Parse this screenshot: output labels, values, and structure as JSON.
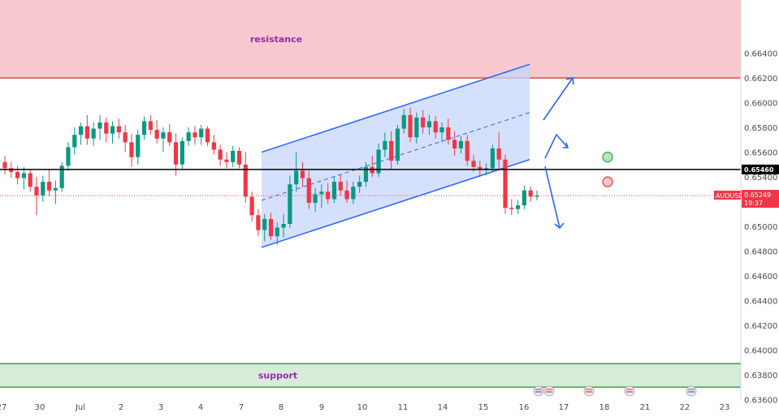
{
  "chart_data": {
    "type": "candlestick",
    "symbol": "AUDUSD",
    "last_price": "0.65249",
    "countdown": "19:37",
    "key_level": "0.65460",
    "y_axis": {
      "ylim": [
        0.6359,
        0.6683
      ],
      "ticks": [
        "0.66400",
        "0.66200",
        "0.66000",
        "0.65800",
        "0.65600",
        "0.65400",
        "0.65200",
        "0.65000",
        "0.64800",
        "0.64600",
        "0.64400",
        "0.64200",
        "0.64000",
        "0.63800",
        "0.63600"
      ]
    },
    "x_axis": {
      "ticks": [
        "27",
        "30",
        "Jul",
        "2",
        "3",
        "4",
        "7",
        "8",
        "9",
        "10",
        "11",
        "14",
        "15",
        "16",
        "17",
        "18",
        "21",
        "22",
        "23"
      ]
    },
    "zones": [
      {
        "label": "resistance",
        "from": 0.662,
        "to": 0.6683,
        "color": "#f7c9cf",
        "line": "#e53935"
      },
      {
        "label": "support",
        "from": 0.637,
        "to": 0.6389,
        "color": "#d6ecd9",
        "line": "#2e9e44"
      }
    ],
    "channel": {
      "color": "#2962ff",
      "fill": "#c7d5fb",
      "lower": [
        [
          "7 Jul late",
          0.6483
        ],
        [
          "15 Jul late",
          0.6554
        ]
      ],
      "upper": [
        [
          "7 Jul late",
          0.656
        ],
        [
          "16 Jul",
          0.6631
        ]
      ],
      "mid": [
        [
          "7 Jul late",
          0.6521
        ],
        [
          "16 Jul",
          0.6592
        ]
      ]
    },
    "scenarios": {
      "up": "bullish continuation arrow",
      "down": "bearish continuation arrow",
      "green_circle": 0.6556,
      "red_circle": 0.6536
    },
    "candles": [
      [
        0.6552,
        0.6557,
        0.6542,
        0.6547
      ],
      [
        0.6547,
        0.6552,
        0.6539,
        0.6544
      ],
      [
        0.6544,
        0.6549,
        0.6534,
        0.6539
      ],
      [
        0.6539,
        0.6548,
        0.653,
        0.6543
      ],
      [
        0.6543,
        0.6546,
        0.6528,
        0.6532
      ],
      [
        0.6532,
        0.654,
        0.6509,
        0.6525
      ],
      [
        0.6525,
        0.6541,
        0.652,
        0.6536
      ],
      [
        0.6536,
        0.6546,
        0.6524,
        0.6529
      ],
      [
        0.6529,
        0.6537,
        0.6518,
        0.6531
      ],
      [
        0.6531,
        0.6552,
        0.6528,
        0.6549
      ],
      [
        0.6549,
        0.6568,
        0.6545,
        0.6564
      ],
      [
        0.6564,
        0.658,
        0.6558,
        0.6574
      ],
      [
        0.6574,
        0.6584,
        0.6566,
        0.6581
      ],
      [
        0.6581,
        0.659,
        0.6566,
        0.6571
      ],
      [
        0.6571,
        0.6584,
        0.6565,
        0.6579
      ],
      [
        0.6579,
        0.659,
        0.657,
        0.6584
      ],
      [
        0.6584,
        0.6588,
        0.6568,
        0.6575
      ],
      [
        0.6575,
        0.6585,
        0.6567,
        0.6581
      ],
      [
        0.6581,
        0.6587,
        0.6571,
        0.6576
      ],
      [
        0.6576,
        0.6582,
        0.656,
        0.6568
      ],
      [
        0.6568,
        0.6575,
        0.6548,
        0.6556
      ],
      [
        0.6556,
        0.6578,
        0.655,
        0.6574
      ],
      [
        0.6574,
        0.6589,
        0.657,
        0.6585
      ],
      [
        0.6585,
        0.659,
        0.6574,
        0.6578
      ],
      [
        0.6578,
        0.6586,
        0.6567,
        0.6571
      ],
      [
        0.6571,
        0.658,
        0.656,
        0.6576
      ],
      [
        0.6576,
        0.6583,
        0.6565,
        0.6568
      ],
      [
        0.6568,
        0.6575,
        0.6541,
        0.655
      ],
      [
        0.655,
        0.6572,
        0.6546,
        0.6569
      ],
      [
        0.6569,
        0.658,
        0.6565,
        0.6576
      ],
      [
        0.6576,
        0.6581,
        0.6566,
        0.6572
      ],
      [
        0.6572,
        0.6582,
        0.6566,
        0.6579
      ],
      [
        0.6579,
        0.6581,
        0.6565,
        0.6568
      ],
      [
        0.6568,
        0.6574,
        0.6558,
        0.6562
      ],
      [
        0.6562,
        0.6566,
        0.6549,
        0.6554
      ],
      [
        0.6554,
        0.656,
        0.6547,
        0.6552
      ],
      [
        0.6552,
        0.6565,
        0.6548,
        0.6561
      ],
      [
        0.6561,
        0.6564,
        0.6547,
        0.655
      ],
      [
        0.655,
        0.656,
        0.6519,
        0.6524
      ],
      [
        0.6524,
        0.6528,
        0.6504,
        0.6509
      ],
      [
        0.6509,
        0.6514,
        0.6492,
        0.6497
      ],
      [
        0.6497,
        0.651,
        0.6488,
        0.6506
      ],
      [
        0.6506,
        0.6511,
        0.6489,
        0.6492
      ],
      [
        0.6492,
        0.6503,
        0.6485,
        0.6499
      ],
      [
        0.6499,
        0.651,
        0.6491,
        0.6502
      ],
      [
        0.6502,
        0.6541,
        0.6499,
        0.6534
      ],
      [
        0.6534,
        0.656,
        0.6528,
        0.6545
      ],
      [
        0.6545,
        0.6552,
        0.6532,
        0.6539
      ],
      [
        0.6539,
        0.6545,
        0.6514,
        0.6519
      ],
      [
        0.6519,
        0.6531,
        0.6512,
        0.6526
      ],
      [
        0.6526,
        0.6534,
        0.6515,
        0.6528
      ],
      [
        0.6528,
        0.6535,
        0.6518,
        0.6522
      ],
      [
        0.6522,
        0.654,
        0.6519,
        0.6536
      ],
      [
        0.6536,
        0.6542,
        0.6525,
        0.6529
      ],
      [
        0.6529,
        0.6537,
        0.6519,
        0.6522
      ],
      [
        0.6522,
        0.6536,
        0.6518,
        0.6532
      ],
      [
        0.6532,
        0.6541,
        0.6527,
        0.6536
      ],
      [
        0.6536,
        0.6552,
        0.6532,
        0.6548
      ],
      [
        0.6548,
        0.6557,
        0.654,
        0.6543
      ],
      [
        0.6543,
        0.6567,
        0.654,
        0.6562
      ],
      [
        0.6562,
        0.6576,
        0.6556,
        0.6569
      ],
      [
        0.6569,
        0.6577,
        0.6546,
        0.6553
      ],
      [
        0.6553,
        0.6582,
        0.655,
        0.6579
      ],
      [
        0.6579,
        0.6595,
        0.6575,
        0.659
      ],
      [
        0.659,
        0.6596,
        0.6568,
        0.6572
      ],
      [
        0.6572,
        0.6592,
        0.6567,
        0.6588
      ],
      [
        0.6588,
        0.6594,
        0.6575,
        0.658
      ],
      [
        0.658,
        0.659,
        0.6574,
        0.6585
      ],
      [
        0.6585,
        0.6589,
        0.6571,
        0.6576
      ],
      [
        0.6576,
        0.6584,
        0.6568,
        0.658
      ],
      [
        0.658,
        0.6587,
        0.6566,
        0.657
      ],
      [
        0.657,
        0.6577,
        0.6557,
        0.6563
      ],
      [
        0.6563,
        0.6573,
        0.6559,
        0.6569
      ],
      [
        0.6569,
        0.6574,
        0.6549,
        0.6553
      ],
      [
        0.6553,
        0.6558,
        0.6544,
        0.6548
      ],
      [
        0.6548,
        0.6553,
        0.654,
        0.6546
      ],
      [
        0.6546,
        0.6551,
        0.6541,
        0.6547
      ],
      [
        0.6547,
        0.6566,
        0.6544,
        0.6563
      ],
      [
        0.6563,
        0.6576,
        0.6546,
        0.6554
      ],
      [
        0.6554,
        0.6558,
        0.651,
        0.6515
      ],
      [
        0.6515,
        0.6522,
        0.6509,
        0.6514
      ],
      [
        0.6514,
        0.6521,
        0.651,
        0.6517
      ],
      [
        0.6517,
        0.6533,
        0.6514,
        0.6529
      ],
      [
        0.6529,
        0.6532,
        0.652,
        0.6524
      ],
      [
        0.6524,
        0.6529,
        0.6521,
        0.6525
      ]
    ]
  }
}
